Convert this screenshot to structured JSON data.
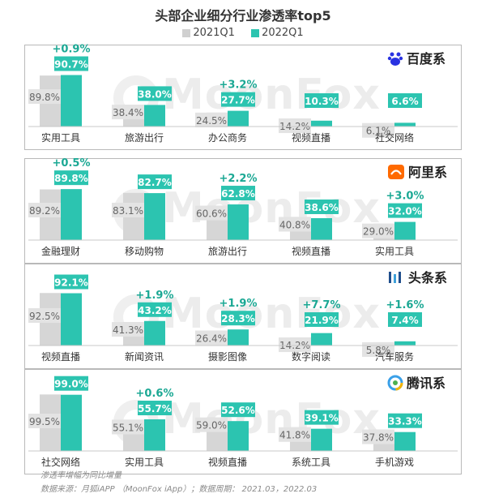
{
  "chart_data": {
    "type": "bar",
    "title": "头部企业细分行业渗透率top5",
    "legend": [
      "2021Q1",
      "2022Q1"
    ],
    "colors": {
      "2021Q1": "#d6d6d6",
      "2022Q1": "#2cc4b0",
      "change_text": "#1ba894",
      "label_2022_text": "#ffffff",
      "label_2021_text": "#666666"
    },
    "panels": [
      {
        "brand": "百度系",
        "categories": [
          "实用工具",
          "旅游出行",
          "办公商务",
          "视频直播",
          "社交网络"
        ],
        "v2021": [
          89.8,
          38.4,
          24.5,
          14.2,
          6.1
        ],
        "v2022": [
          90.7,
          38.0,
          27.7,
          10.3,
          6.6
        ],
        "labels_2021": [
          "89.8%",
          "38.4%",
          "24.5%",
          "14.2%",
          "6.1%"
        ],
        "labels_2022": [
          "90.7%",
          "38.0%",
          "27.7%",
          "10.3%",
          "6.6%"
        ],
        "changes": [
          "+0.9%",
          "",
          "+3.2%",
          "",
          ""
        ]
      },
      {
        "brand": "阿里系",
        "categories": [
          "金融理财",
          "移动购物",
          "旅游出行",
          "视频直播",
          "实用工具"
        ],
        "v2021": [
          89.2,
          83.1,
          60.6,
          40.8,
          29.0
        ],
        "v2022": [
          89.8,
          82.7,
          62.8,
          38.6,
          32.0
        ],
        "labels_2021": [
          "89.2%",
          "83.1%",
          "60.6%",
          "40.8%",
          "29.0%"
        ],
        "labels_2022": [
          "89.8%",
          "82.7%",
          "62.8%",
          "38.6%",
          "32.0%"
        ],
        "changes": [
          "+0.5%",
          "",
          "+2.2%",
          "",
          "+3.0%"
        ]
      },
      {
        "brand": "头条系",
        "categories": [
          "视频直播",
          "新闻资讯",
          "摄影图像",
          "数字阅读",
          "汽车服务"
        ],
        "v2021": [
          92.5,
          41.3,
          26.4,
          14.2,
          5.8
        ],
        "v2022": [
          92.1,
          43.2,
          28.3,
          21.9,
          7.4
        ],
        "labels_2021": [
          "92.5%",
          "41.3%",
          "26.4%",
          "14.2%",
          "5.8%"
        ],
        "labels_2022": [
          "92.1%",
          "43.2%",
          "28.3%",
          "21.9%",
          "7.4%"
        ],
        "changes": [
          "",
          "+1.9%",
          "+1.9%",
          "+7.7%",
          "+1.6%"
        ]
      },
      {
        "brand": "腾讯系",
        "categories": [
          "社交网络",
          "实用工具",
          "视频直播",
          "系统工具",
          "手机游戏"
        ],
        "v2021": [
          99.5,
          55.1,
          59.0,
          41.8,
          37.8
        ],
        "v2022": [
          99.0,
          55.7,
          52.6,
          39.1,
          33.3
        ],
        "labels_2021": [
          "99.5%",
          "55.1%",
          "59.0%",
          "41.8%",
          "37.8%"
        ],
        "labels_2022": [
          "99.0%",
          "55.7%",
          "52.6%",
          "39.1%",
          "33.3%"
        ],
        "changes": [
          "",
          "+0.6%",
          "",
          "",
          ""
        ]
      }
    ]
  },
  "watermark": "MoonFox",
  "notes": {
    "line1": "渗透率增幅为同比增量",
    "line2": "数据来源：月狐iAPP （MoonFox iApp）；数据周期： 2021.03，2022.03"
  }
}
